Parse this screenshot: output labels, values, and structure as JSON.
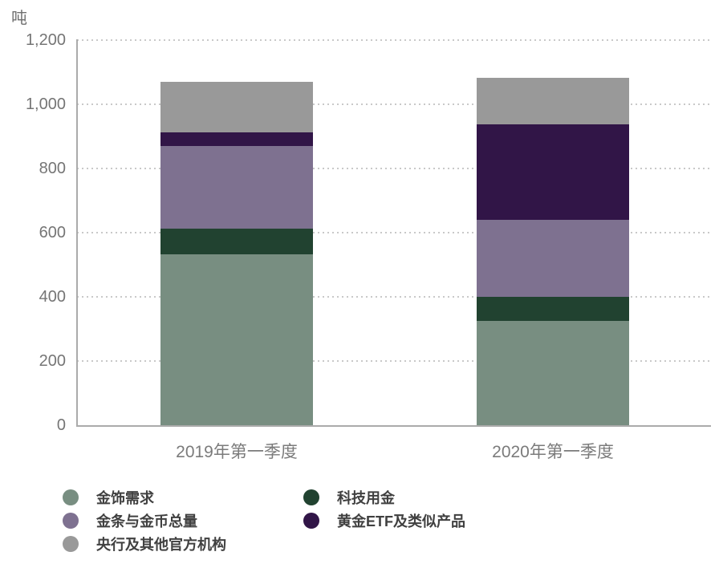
{
  "unit_label": "吨",
  "colors": {
    "jewelry": "#788E81",
    "technology": "#214230",
    "bar_and_coin": "#7E7190",
    "etf": "#311547",
    "central_banks": "#999999",
    "gridline": "#c9c9c9",
    "axis": "#ababab",
    "tick_text": "#757575",
    "xlabel_text": "#7b7b7b",
    "legend_text": "#404040"
  },
  "chart_data": {
    "type": "bar",
    "subtype": "stacked-vertical",
    "title": "",
    "ylabel": "吨",
    "xlabel": "",
    "ylim": [
      0,
      1200
    ],
    "grid": "horizontal-dotted",
    "legend_position": "bottom-two-columns",
    "categories": [
      "2019年第一季度",
      "2020年第一季度"
    ],
    "yticks": [
      {
        "value": 0,
        "label": "0"
      },
      {
        "value": 200,
        "label": "200"
      },
      {
        "value": 400,
        "label": "400"
      },
      {
        "value": 600,
        "label": "600"
      },
      {
        "value": 800,
        "label": "800"
      },
      {
        "value": 1000,
        "label": "1,000"
      },
      {
        "value": 1200,
        "label": "1,200"
      }
    ],
    "series": [
      {
        "name": "金饰需求",
        "color": "#788E81",
        "values": [
          533.4,
          325.8
        ]
      },
      {
        "name": "科技用金",
        "color": "#214230",
        "values": [
          79.5,
          73.4
        ]
      },
      {
        "name": "金条与金币总量",
        "color": "#7E7190",
        "values": [
          257.6,
          241.6
        ]
      },
      {
        "name": "黄金ETF及类似产品",
        "color": "#311547",
        "values": [
          42.9,
          298.0
        ]
      },
      {
        "name": "央行及其他官方机构",
        "color": "#999999",
        "values": [
          157.0,
          145.0
        ]
      }
    ],
    "totals": [
      1070.4,
      1083.8
    ],
    "legend_columns": [
      [
        0,
        2,
        4
      ],
      [
        1,
        3
      ]
    ]
  }
}
